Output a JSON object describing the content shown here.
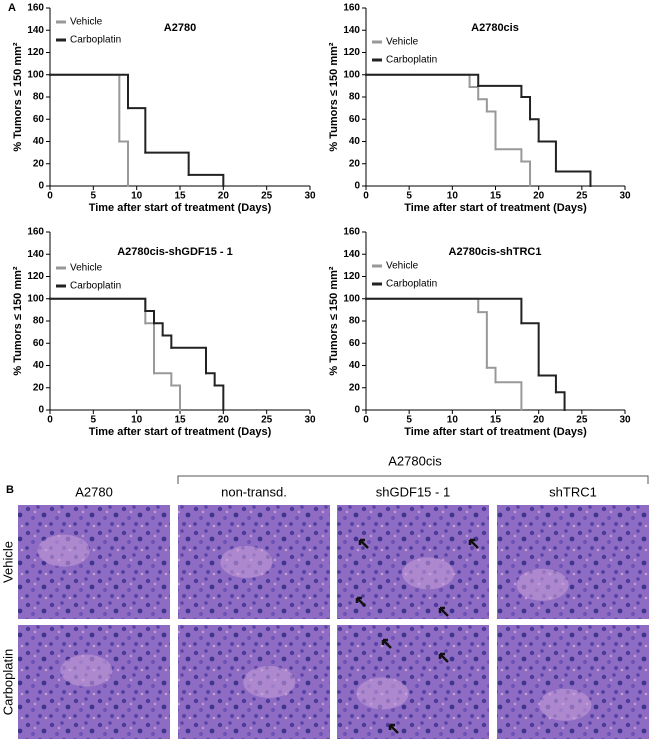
{
  "panel_a_label": "A",
  "chart_data": [
    {
      "type": "line",
      "step": true,
      "title": "A2780",
      "x_label": "Time after start of treatment (Days)",
      "y_label": "% Tumors ≤ 150 mm²",
      "xlim": [
        0,
        30
      ],
      "xticks": [
        0,
        5,
        10,
        15,
        20,
        25,
        30
      ],
      "ylim": [
        0,
        160
      ],
      "yticks": [
        0,
        20,
        40,
        60,
        80,
        100,
        120,
        140,
        160
      ],
      "series": [
        {
          "name": "Vehicle",
          "color": "#999999",
          "x": [
            0,
            8,
            9
          ],
          "values": [
            100,
            40,
            0
          ]
        },
        {
          "name": "Carboplatin",
          "color": "#222222",
          "x": [
            0,
            9,
            11,
            16,
            20
          ],
          "values": [
            100,
            70,
            30,
            10,
            0
          ]
        }
      ]
    },
    {
      "type": "line",
      "step": true,
      "title": "A2780cis",
      "x_label": "Time after start of treatment (Days)",
      "y_label": "% Tumors ≤ 150 mm²",
      "xlim": [
        0,
        30
      ],
      "xticks": [
        0,
        5,
        10,
        15,
        20,
        25,
        30
      ],
      "ylim": [
        0,
        160
      ],
      "yticks": [
        0,
        20,
        40,
        60,
        80,
        100,
        120,
        140,
        160
      ],
      "series": [
        {
          "name": "Vehicle",
          "color": "#999999",
          "x": [
            0,
            12,
            13,
            14,
            15,
            18,
            19
          ],
          "values": [
            100,
            89,
            78,
            67,
            33,
            22,
            0
          ]
        },
        {
          "name": "Carboplatin",
          "color": "#222222",
          "x": [
            0,
            13,
            18,
            19,
            20,
            22,
            26
          ],
          "values": [
            100,
            90,
            80,
            60,
            40,
            13,
            0
          ]
        }
      ]
    },
    {
      "type": "line",
      "step": true,
      "title": "A2780cis-shGDF15 - 1",
      "x_label": "Time after start of treatment (Days)",
      "y_label": "% Tumors ≤ 150 mm²",
      "xlim": [
        0,
        30
      ],
      "xticks": [
        0,
        5,
        10,
        15,
        20,
        25,
        30
      ],
      "ylim": [
        0,
        160
      ],
      "yticks": [
        0,
        20,
        40,
        60,
        80,
        100,
        120,
        140,
        160
      ],
      "series": [
        {
          "name": "Vehicle",
          "color": "#999999",
          "x": [
            0,
            11,
            12,
            14,
            15
          ],
          "values": [
            100,
            78,
            33,
            22,
            0
          ]
        },
        {
          "name": "Carboplatin",
          "color": "#222222",
          "x": [
            0,
            11,
            12,
            13,
            14,
            18,
            19,
            20
          ],
          "values": [
            100,
            89,
            78,
            67,
            56,
            33,
            22,
            0
          ]
        }
      ]
    },
    {
      "type": "line",
      "step": true,
      "title": "A2780cis-shTRC1",
      "x_label": "Time after start of treatment (Days)",
      "y_label": "% Tumors ≤ 150 mm²",
      "xlim": [
        0,
        30
      ],
      "xticks": [
        0,
        5,
        10,
        15,
        20,
        25,
        30
      ],
      "ylim": [
        0,
        160
      ],
      "yticks": [
        0,
        20,
        40,
        60,
        80,
        100,
        120,
        140,
        160
      ],
      "series": [
        {
          "name": "Vehicle",
          "color": "#999999",
          "x": [
            0,
            13,
            14,
            15,
            18
          ],
          "values": [
            100,
            88,
            38,
            25,
            0
          ]
        },
        {
          "name": "Carboplatin",
          "color": "#222222",
          "x": [
            0,
            18,
            20,
            22,
            23
          ],
          "values": [
            100,
            78,
            31,
            16,
            0
          ]
        }
      ]
    }
  ],
  "panel_b": {
    "label": "B",
    "group_label": "A2780cis",
    "columns": [
      "A2780",
      "non-transd.",
      "shGDF15 - 1",
      "shTRC1"
    ],
    "rows": [
      "Vehicle",
      "Carboplatin"
    ]
  }
}
